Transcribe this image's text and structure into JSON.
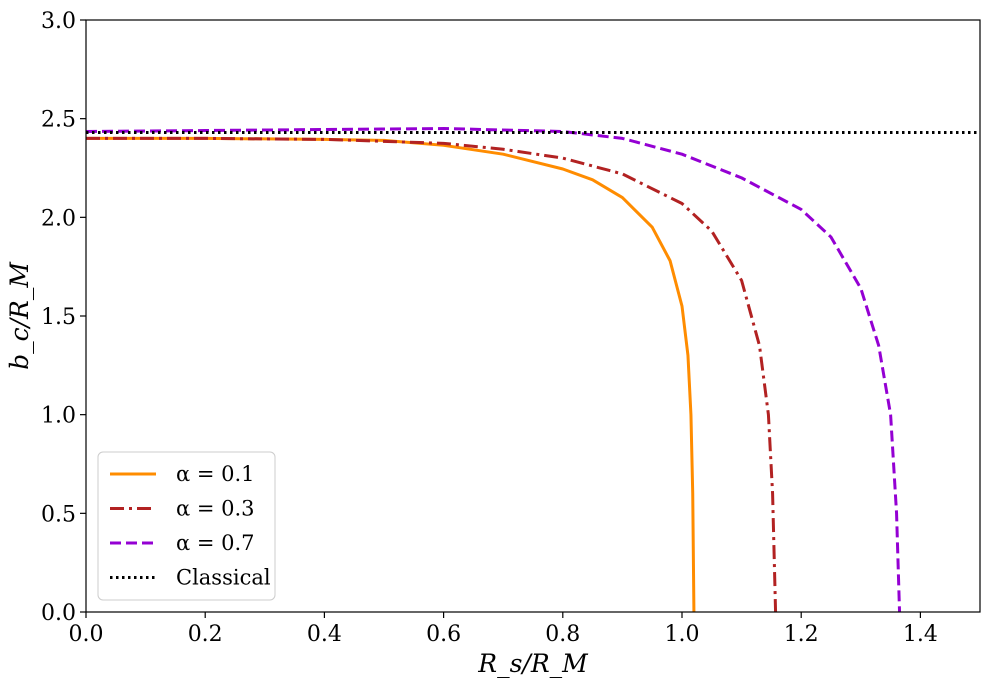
{
  "chart_data": {
    "type": "line",
    "xlabel": "R_s/R_M",
    "ylabel": "b_c/R_M",
    "xlim": [
      0.0,
      1.5
    ],
    "ylim": [
      0.0,
      3.0
    ],
    "xticks": [
      "0.0",
      "0.2",
      "0.4",
      "0.6",
      "0.8",
      "1.0",
      "1.2",
      "1.4"
    ],
    "yticks": [
      "0.0",
      "0.5",
      "1.0",
      "1.5",
      "2.0",
      "2.5",
      "3.0"
    ],
    "grid": false,
    "legend_position": "lower-left",
    "series": [
      {
        "name": "α = 0.1",
        "color": "#ff8c00",
        "style": "solid",
        "points": [
          [
            0.0,
            2.4
          ],
          [
            0.2,
            2.4
          ],
          [
            0.4,
            2.395
          ],
          [
            0.5,
            2.39
          ],
          [
            0.6,
            2.365
          ],
          [
            0.7,
            2.32
          ],
          [
            0.8,
            2.245
          ],
          [
            0.85,
            2.19
          ],
          [
            0.9,
            2.1
          ],
          [
            0.95,
            1.95
          ],
          [
            0.98,
            1.78
          ],
          [
            1.0,
            1.55
          ],
          [
            1.01,
            1.3
          ],
          [
            1.015,
            1.0
          ],
          [
            1.018,
            0.6
          ],
          [
            1.02,
            0.0
          ]
        ]
      },
      {
        "name": "α = 0.3",
        "color": "#b22222",
        "style": "dashdot",
        "points": [
          [
            0.0,
            2.4
          ],
          [
            0.2,
            2.4
          ],
          [
            0.4,
            2.395
          ],
          [
            0.6,
            2.375
          ],
          [
            0.7,
            2.345
          ],
          [
            0.8,
            2.3
          ],
          [
            0.9,
            2.22
          ],
          [
            1.0,
            2.07
          ],
          [
            1.05,
            1.93
          ],
          [
            1.1,
            1.68
          ],
          [
            1.13,
            1.35
          ],
          [
            1.145,
            1.0
          ],
          [
            1.152,
            0.6
          ],
          [
            1.157,
            0.0
          ]
        ]
      },
      {
        "name": "α = 0.7",
        "color": "#9400d3",
        "style": "dashed",
        "points": [
          [
            0.0,
            2.435
          ],
          [
            0.2,
            2.44
          ],
          [
            0.4,
            2.445
          ],
          [
            0.6,
            2.45
          ],
          [
            0.8,
            2.435
          ],
          [
            0.9,
            2.4
          ],
          [
            1.0,
            2.32
          ],
          [
            1.1,
            2.2
          ],
          [
            1.2,
            2.04
          ],
          [
            1.25,
            1.9
          ],
          [
            1.3,
            1.64
          ],
          [
            1.33,
            1.35
          ],
          [
            1.35,
            1.0
          ],
          [
            1.36,
            0.5
          ],
          [
            1.365,
            0.0
          ]
        ]
      },
      {
        "name": "Classical",
        "color": "#000000",
        "style": "dotted",
        "points": [
          [
            0.0,
            2.43
          ],
          [
            1.5,
            2.43
          ]
        ]
      }
    ]
  }
}
